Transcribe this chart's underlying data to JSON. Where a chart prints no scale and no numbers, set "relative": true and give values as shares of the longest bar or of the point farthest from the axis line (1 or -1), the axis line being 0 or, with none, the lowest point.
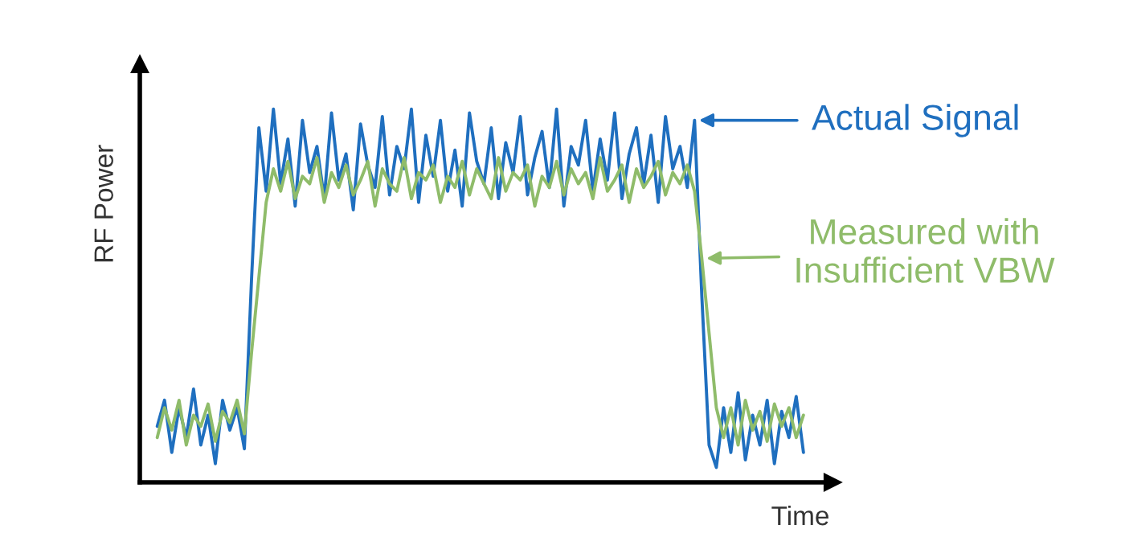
{
  "chart_data": {
    "type": "line",
    "relative": true,
    "xlabel": "Time",
    "ylabel": "RF Power",
    "legend": "right",
    "categories": [
      null,
      null,
      null,
      null,
      null,
      null,
      null,
      null,
      null,
      null,
      null,
      null,
      null,
      null,
      null,
      null,
      null,
      null,
      null,
      null,
      null,
      null,
      null,
      null,
      null,
      null,
      null,
      null,
      null,
      null,
      null,
      null,
      null,
      null,
      null,
      null,
      null,
      null,
      null,
      null,
      null,
      null,
      null,
      null,
      null,
      null,
      null,
      null,
      null,
      null,
      null,
      null,
      null,
      null,
      null,
      null,
      null,
      null,
      null,
      null,
      null,
      null,
      null,
      null,
      null,
      null,
      null,
      null,
      null,
      null,
      null,
      null,
      null,
      null,
      null,
      null,
      null,
      null,
      null,
      null,
      null,
      null,
      null,
      null,
      null,
      null,
      null,
      null,
      null,
      null
    ],
    "series": [
      {
        "name": "Actual Signal",
        "color": "#1f6fbf",
        "values": [
          0.15,
          0.22,
          0.08,
          0.2,
          0.12,
          0.25,
          0.1,
          0.18,
          0.05,
          0.22,
          0.14,
          0.2,
          0.09,
          0.55,
          0.95,
          0.78,
          1.0,
          0.8,
          0.92,
          0.74,
          0.97,
          0.83,
          0.9,
          0.76,
          0.99,
          0.81,
          0.88,
          0.73,
          0.96,
          0.85,
          0.79,
          0.98,
          0.77,
          0.9,
          0.84,
          1.0,
          0.75,
          0.93,
          0.82,
          0.97,
          0.78,
          0.89,
          0.74,
          0.99,
          0.86,
          0.8,
          0.95,
          0.76,
          0.91,
          0.83,
          0.98,
          0.77,
          0.87,
          0.94,
          0.79,
          1.0,
          0.74,
          0.9,
          0.85,
          0.97,
          0.78,
          0.92,
          0.81,
          0.99,
          0.76,
          0.88,
          0.95,
          0.8,
          0.93,
          0.75,
          0.98,
          0.84,
          0.9,
          0.79,
          0.97,
          0.5,
          0.1,
          0.04,
          0.2,
          0.08,
          0.24,
          0.06,
          0.18,
          0.1,
          0.22,
          0.05,
          0.19,
          0.12,
          0.23,
          0.08
        ]
      },
      {
        "name": "Measured with Insufficient VBW",
        "color": "#8fbc6a",
        "values": [
          0.12,
          0.2,
          0.14,
          0.22,
          0.1,
          0.18,
          0.15,
          0.21,
          0.11,
          0.19,
          0.16,
          0.22,
          0.13,
          0.35,
          0.55,
          0.75,
          0.84,
          0.78,
          0.86,
          0.76,
          0.82,
          0.8,
          0.87,
          0.75,
          0.83,
          0.79,
          0.85,
          0.77,
          0.81,
          0.86,
          0.74,
          0.84,
          0.8,
          0.78,
          0.87,
          0.76,
          0.83,
          0.81,
          0.85,
          0.75,
          0.82,
          0.79,
          0.86,
          0.77,
          0.84,
          0.8,
          0.76,
          0.87,
          0.78,
          0.83,
          0.81,
          0.85,
          0.74,
          0.82,
          0.79,
          0.86,
          0.77,
          0.84,
          0.8,
          0.83,
          0.76,
          0.87,
          0.78,
          0.81,
          0.85,
          0.75,
          0.84,
          0.79,
          0.82,
          0.86,
          0.77,
          0.83,
          0.8,
          0.85,
          0.78,
          0.6,
          0.4,
          0.2,
          0.12,
          0.2,
          0.1,
          0.22,
          0.14,
          0.19,
          0.11,
          0.21,
          0.15,
          0.2,
          0.12,
          0.18
        ]
      }
    ]
  }
}
